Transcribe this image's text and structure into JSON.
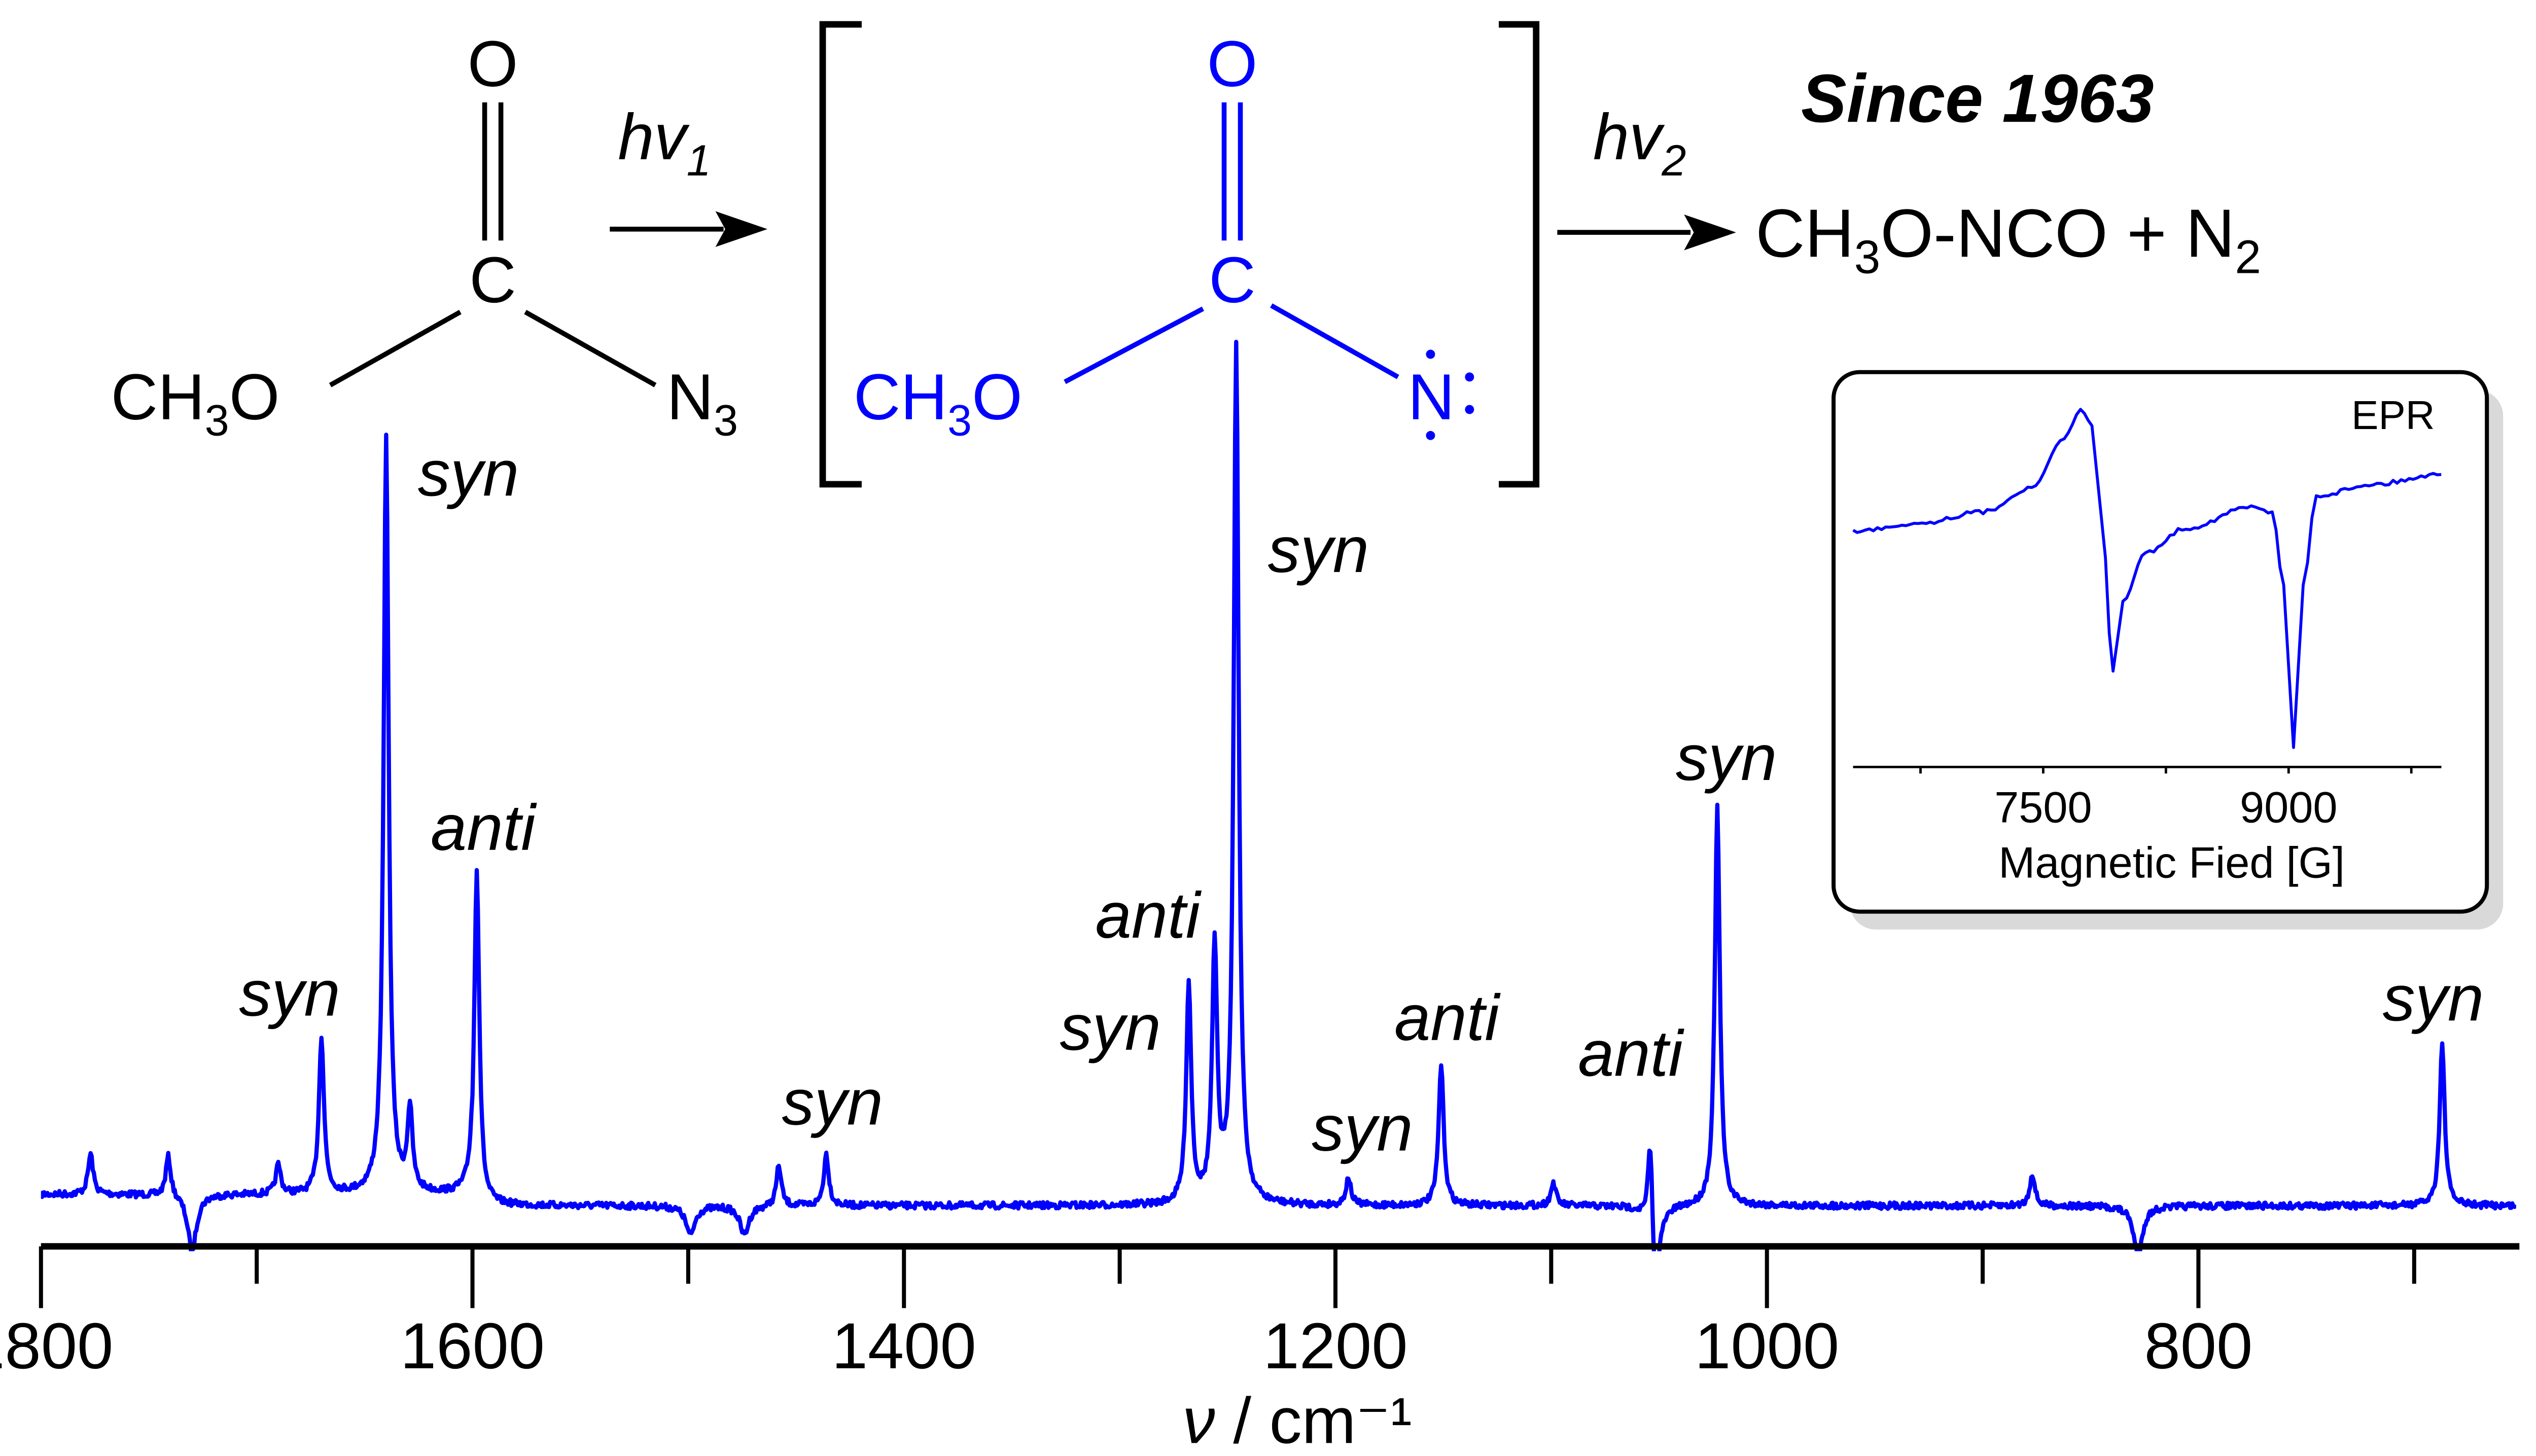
{
  "scheme": {
    "reactant": {
      "o": "O",
      "c": "C",
      "ch3o": "CH3O",
      "n3": "N3"
    },
    "arrow1_label": "hv1",
    "intermediate": {
      "o": "O",
      "c": "C",
      "ch3o": "CH3O",
      "n": "N"
    },
    "arrow2_label": "hv2",
    "product": "CH3O-NCO + N2",
    "since": "Since 1963"
  },
  "colors": {
    "spectrum": "#0000ff",
    "intermediate": "#0000ff",
    "axis": "#000000",
    "inset_shadow": "#d9d9d9"
  },
  "chart_data": [
    {
      "type": "line",
      "title": "",
      "xlabel": "ν / cm⁻¹",
      "ylabel": "",
      "xlim": [
        1800,
        653
      ],
      "x_reversed": true,
      "xticks": [
        "1800",
        "1600",
        "1400",
        "1200",
        "1000",
        "800"
      ],
      "grid": false,
      "peaks": [
        {
          "x": 1777,
          "y": 25
        },
        {
          "x": 1741,
          "y": 25
        },
        {
          "x": 1730,
          "y": -35
        },
        {
          "x": 1690,
          "y": 18
        },
        {
          "x": 1670,
          "y": 97,
          "label": "syn"
        },
        {
          "x": 1640,
          "y": 467,
          "label": "syn"
        },
        {
          "x": 1629,
          "y": 50
        },
        {
          "x": 1598,
          "y": 207,
          "label": "anti"
        },
        {
          "x": 1499,
          "y": -18
        },
        {
          "x": 1474,
          "y": -18
        },
        {
          "x": 1458,
          "y": 25
        },
        {
          "x": 1436,
          "y": 32,
          "label": "syn"
        },
        {
          "x": 1268,
          "y": 135,
          "label": "syn"
        },
        {
          "x": 1256,
          "y": 156,
          "label": "anti"
        },
        {
          "x": 1246,
          "y": 530,
          "label": "syn"
        },
        {
          "x": 1194,
          "y": 17,
          "label": "syn"
        },
        {
          "x": 1151,
          "y": 87,
          "label": "anti"
        },
        {
          "x": 1099,
          "y": 14
        },
        {
          "x": 1054,
          "y": 70,
          "label": "anti"
        },
        {
          "x": 1052,
          "y": -60
        },
        {
          "x": 1023,
          "y": 245,
          "label": "syn"
        },
        {
          "x": 877,
          "y": 20
        },
        {
          "x": 828,
          "y": -30
        },
        {
          "x": 687,
          "y": 100,
          "label": "syn"
        }
      ]
    },
    {
      "type": "line",
      "title": "EPR",
      "xlabel": "Magnetic Fied [G]",
      "ylabel": "",
      "xlim": [
        6338,
        9933
      ],
      "xticks": [
        "7500",
        "9000"
      ],
      "grid": false,
      "x": [
        6338,
        6735,
        7133,
        7430,
        7629,
        7728,
        7798,
        7857,
        7927,
        7987,
        8126,
        8374,
        8771,
        8900,
        8970,
        9030,
        9089,
        9169,
        9516,
        9933
      ],
      "y": [
        23,
        28,
        35,
        50,
        80,
        98,
        88,
        30,
        -63,
        -20,
        10,
        25,
        38,
        35,
        -10,
        -110,
        -10,
        45,
        52,
        58
      ]
    }
  ]
}
